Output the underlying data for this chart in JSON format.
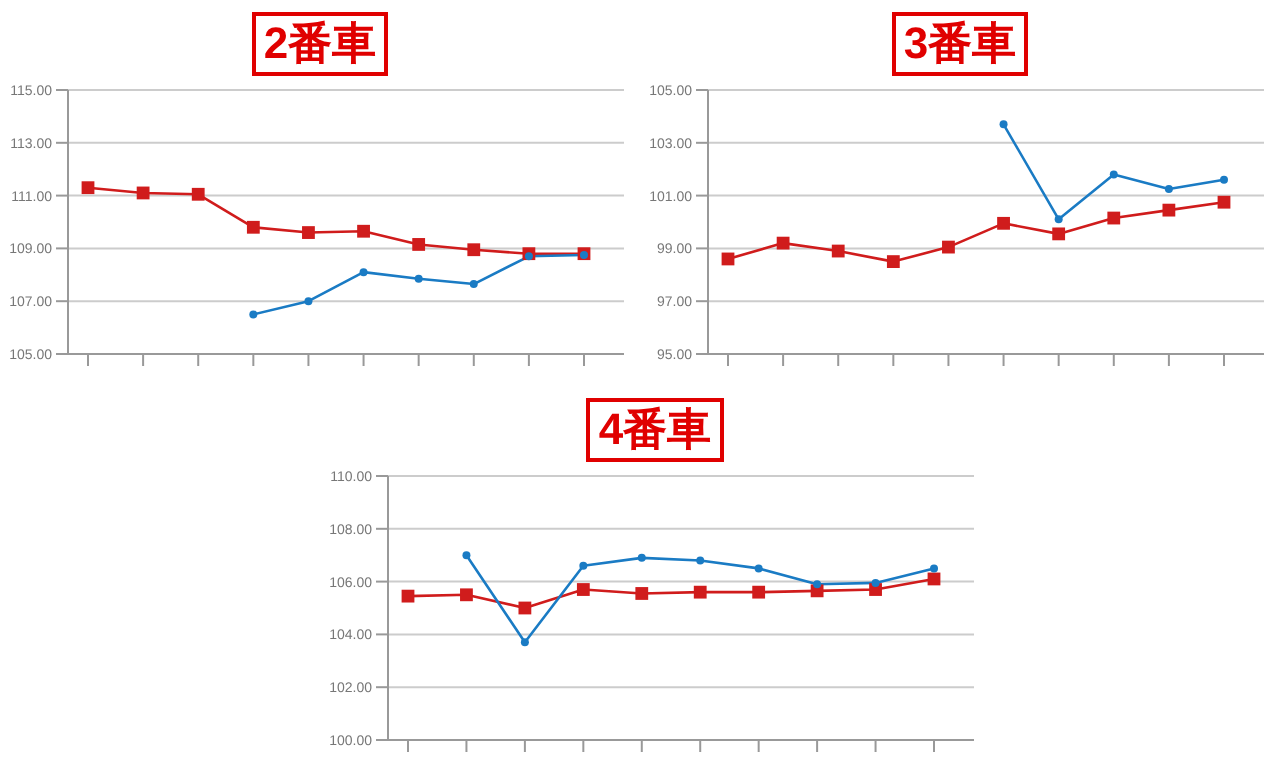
{
  "chart_data": [
    {
      "type": "line",
      "title": "2番車",
      "categories": [
        null,
        null,
        null,
        null,
        null,
        null,
        null,
        null,
        null,
        null
      ],
      "ylim": [
        105,
        115
      ],
      "yticks": [
        {
          "value": 105,
          "label": "105.00"
        },
        {
          "value": 107,
          "label": "107.00"
        },
        {
          "value": 109,
          "label": "109.00"
        },
        {
          "value": 111,
          "label": "111.00"
        },
        {
          "value": 113,
          "label": "113.00"
        },
        {
          "value": 115,
          "label": "115.00"
        }
      ],
      "grid": "y",
      "legend": false,
      "line_style": "solid",
      "series": [
        {
          "color": "#d01c1c",
          "marker": "square",
          "values": [
            111.3,
            111.1,
            111.05,
            109.8,
            109.6,
            109.65,
            109.15,
            108.95,
            108.8,
            108.8
          ]
        },
        {
          "color": "#1a7bc4",
          "marker": "circle",
          "values": [
            null,
            null,
            null,
            106.5,
            107.0,
            108.1,
            107.85,
            107.65,
            108.7,
            108.75
          ]
        }
      ]
    },
    {
      "type": "line",
      "title": "3番車",
      "categories": [
        null,
        null,
        null,
        null,
        null,
        null,
        null,
        null,
        null,
        null
      ],
      "ylim": [
        95,
        105
      ],
      "yticks": [
        {
          "value": 95,
          "label": "95.00"
        },
        {
          "value": 97,
          "label": "97.00"
        },
        {
          "value": 99,
          "label": "99.00"
        },
        {
          "value": 101,
          "label": "101.00"
        },
        {
          "value": 103,
          "label": "103.00"
        },
        {
          "value": 105,
          "label": "105.00"
        }
      ],
      "grid": "y",
      "legend": false,
      "line_style": "solid",
      "series": [
        {
          "color": "#d01c1c",
          "marker": "square",
          "values": [
            98.6,
            99.2,
            98.9,
            98.5,
            99.05,
            99.95,
            99.55,
            100.15,
            100.45,
            100.75
          ]
        },
        {
          "color": "#1a7bc4",
          "marker": "circle",
          "values": [
            null,
            null,
            null,
            null,
            null,
            103.7,
            100.1,
            101.8,
            101.25,
            101.6
          ]
        }
      ]
    },
    {
      "type": "line",
      "title": "4番車",
      "categories": [
        null,
        null,
        null,
        null,
        null,
        null,
        null,
        null,
        null,
        null
      ],
      "ylim": [
        100,
        110
      ],
      "yticks": [
        {
          "value": 100,
          "label": "100.00"
        },
        {
          "value": 102,
          "label": "102.00"
        },
        {
          "value": 104,
          "label": "104.00"
        },
        {
          "value": 106,
          "label": "106.00"
        },
        {
          "value": 108,
          "label": "108.00"
        },
        {
          "value": 110,
          "label": "110.00"
        }
      ],
      "grid": "y",
      "legend": false,
      "line_style": "solid",
      "series": [
        {
          "color": "#d01c1c",
          "marker": "square",
          "values": [
            105.45,
            105.5,
            105.0,
            105.7,
            105.55,
            105.6,
            105.6,
            105.65,
            105.7,
            106.1
          ]
        },
        {
          "color": "#1a7bc4",
          "marker": "circle",
          "values": [
            null,
            107.0,
            103.7,
            106.6,
            106.9,
            106.8,
            106.5,
            105.9,
            105.95,
            106.5
          ]
        }
      ]
    }
  ]
}
